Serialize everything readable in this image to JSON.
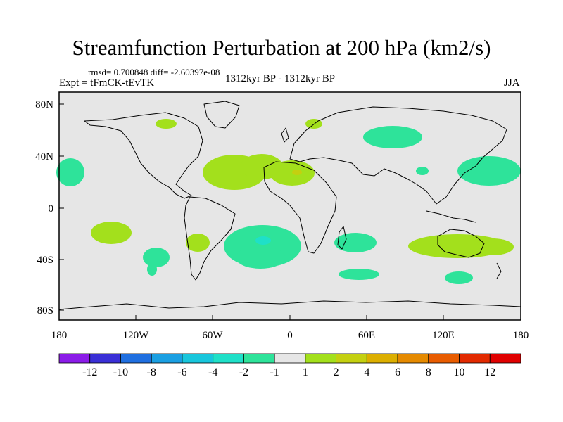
{
  "title": "Streamfunction Perturbation at 200 hPa (km2/s)",
  "stats": "rmsd= 0.700848 diff= -2.60397e-08",
  "experiment": "Expt = tFmCK-tEvTK",
  "period": "1312kyr BP - 1312kyr BP",
  "season": "JJA",
  "x_ticks": [
    "180",
    "120W",
    "60W",
    "0",
    "60E",
    "120E",
    "180"
  ],
  "y_ticks": [
    "80N",
    "40N",
    "0",
    "40S",
    "80S"
  ],
  "colorbar": {
    "labels": [
      "-12",
      "-10",
      "-8",
      "-6",
      "-4",
      "-2",
      "-1",
      "1",
      "2",
      "4",
      "6",
      "8",
      "10",
      "12"
    ],
    "colors": [
      "#8b1ce8",
      "#3a2fd6",
      "#1f6fe0",
      "#1a9fe2",
      "#18c6dc",
      "#1fe0c8",
      "#2ee39a",
      "#e6e6e6",
      "#a3e01c",
      "#c4d010",
      "#dcaf00",
      "#e58a00",
      "#e85c00",
      "#e22a00",
      "#e00000"
    ]
  },
  "colors": {
    "background": "#e6e6e6",
    "positive_1_2": "#a3e01c",
    "positive_2_4": "#c4d010",
    "negative_-1_-2": "#2ee39a",
    "negative_-2_-4": "#1fe0c8"
  }
}
